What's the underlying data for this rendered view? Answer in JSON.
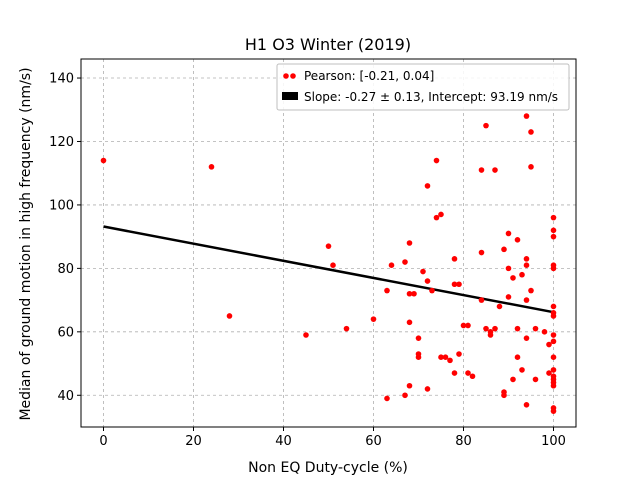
{
  "chart_data": {
    "type": "scatter",
    "title": "H1 O3 Winter (2019)",
    "xlabel": "Non EQ Duty-cycle (%)",
    "ylabel": "Median of ground motion in high frequency (nm/s)",
    "xlim": [
      -5,
      105
    ],
    "ylim": [
      30,
      146
    ],
    "xticks": [
      0,
      20,
      40,
      60,
      80,
      100
    ],
    "yticks": [
      40,
      60,
      80,
      100,
      120,
      140
    ],
    "grid": true,
    "legend": "top-right",
    "series": [
      {
        "name": "Pearson: [-0.21, 0.04]",
        "kind": "scatter",
        "color": "#ff0000",
        "points": [
          [
            0,
            114
          ],
          [
            24,
            112
          ],
          [
            28,
            65
          ],
          [
            45,
            59
          ],
          [
            50,
            87
          ],
          [
            51,
            81
          ],
          [
            54,
            61
          ],
          [
            60,
            64
          ],
          [
            63,
            39
          ],
          [
            63,
            73
          ],
          [
            64,
            81
          ],
          [
            67,
            40
          ],
          [
            67,
            82
          ],
          [
            68,
            43
          ],
          [
            68,
            88
          ],
          [
            68,
            63
          ],
          [
            68,
            72
          ],
          [
            69,
            72
          ],
          [
            70,
            58
          ],
          [
            70,
            53
          ],
          [
            70,
            52
          ],
          [
            71,
            79
          ],
          [
            72,
            42
          ],
          [
            72,
            76
          ],
          [
            72,
            106
          ],
          [
            73,
            73
          ],
          [
            74,
            96
          ],
          [
            74,
            114
          ],
          [
            75,
            97
          ],
          [
            75,
            52
          ],
          [
            76,
            52
          ],
          [
            77,
            51
          ],
          [
            78,
            83
          ],
          [
            78,
            75
          ],
          [
            78,
            47
          ],
          [
            79,
            75
          ],
          [
            79,
            53
          ],
          [
            80,
            62
          ],
          [
            81,
            62
          ],
          [
            81,
            47
          ],
          [
            82,
            46
          ],
          [
            84,
            111
          ],
          [
            84,
            85
          ],
          [
            84,
            70
          ],
          [
            85,
            61
          ],
          [
            85,
            125
          ],
          [
            86,
            60
          ],
          [
            86,
            59
          ],
          [
            87,
            111
          ],
          [
            87,
            61
          ],
          [
            88,
            68
          ],
          [
            89,
            86
          ],
          [
            89,
            41
          ],
          [
            89,
            40
          ],
          [
            90,
            91
          ],
          [
            90,
            80
          ],
          [
            90,
            71
          ],
          [
            91,
            77
          ],
          [
            91,
            45
          ],
          [
            92,
            89
          ],
          [
            92,
            61
          ],
          [
            92,
            52
          ],
          [
            93,
            48
          ],
          [
            93,
            78
          ],
          [
            94,
            128
          ],
          [
            94,
            83
          ],
          [
            94,
            81
          ],
          [
            94,
            70
          ],
          [
            94,
            58
          ],
          [
            94,
            37
          ],
          [
            95,
            123
          ],
          [
            95,
            112
          ],
          [
            95,
            73
          ],
          [
            96,
            61
          ],
          [
            96,
            45
          ],
          [
            98,
            60
          ],
          [
            99,
            56
          ],
          [
            99,
            47
          ],
          [
            100,
            96
          ],
          [
            100,
            92
          ],
          [
            100,
            90
          ],
          [
            100,
            81
          ],
          [
            100,
            80
          ],
          [
            100,
            68
          ],
          [
            100,
            66
          ],
          [
            100,
            65
          ],
          [
            100,
            59
          ],
          [
            100,
            57
          ],
          [
            100,
            52
          ],
          [
            100,
            48
          ],
          [
            100,
            46
          ],
          [
            100,
            45
          ],
          [
            100,
            44
          ],
          [
            100,
            43
          ],
          [
            100,
            36
          ],
          [
            100,
            35
          ]
        ]
      },
      {
        "name": "Slope: -0.27 ± 0.13, Intercept: 93.19 nm/s",
        "kind": "line",
        "color": "#000000",
        "slope": -0.27,
        "intercept": 93.19,
        "x_range": [
          0,
          100
        ]
      }
    ]
  }
}
